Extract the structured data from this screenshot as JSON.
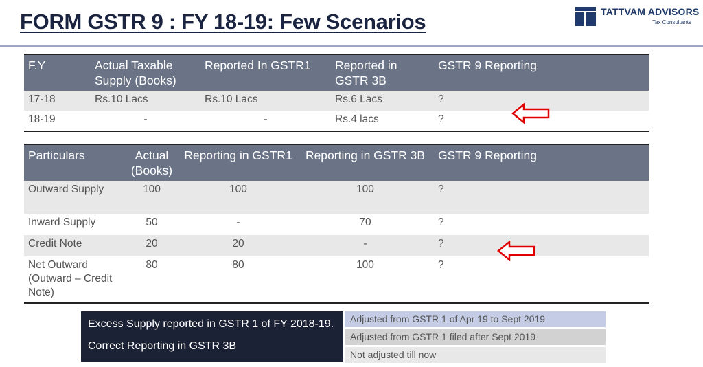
{
  "slide": {
    "title": "FORM GSTR 9 : FY 18-19: Few Scenarios",
    "brand": {
      "name": "TATTVAM ADVISORS",
      "tagline": "Tax Consultants",
      "color": "#1f3a6b"
    }
  },
  "table1": {
    "headers": [
      "F.Y",
      "Actual Taxable Supply (Books)",
      "Reported In GSTR1",
      "Reported in GSTR 3B",
      "GSTR 9  Reporting"
    ],
    "rows": [
      [
        "17-18",
        "Rs.10 Lacs",
        "Rs.10 Lacs",
        "Rs.6 Lacs",
        "?"
      ],
      [
        "18-19",
        "-",
        "-",
        "Rs.4 lacs",
        "?"
      ]
    ],
    "pointer_icon": "left-arrow-icon"
  },
  "table2": {
    "headers": [
      "Particulars",
      "Actual (Books)",
      "Reporting in GSTR1",
      "Reporting in GSTR 3B",
      "GSTR 9  Reporting"
    ],
    "rows": [
      [
        "Outward Supply",
        "100",
        "100",
        "100",
        "?"
      ],
      [
        "Inward Supply",
        "50",
        "-",
        "70",
        "?"
      ],
      [
        "Credit Note",
        "20",
        "20",
        "-",
        "?"
      ],
      [
        "Net Outward (Outward – Credit Note)",
        "80",
        "80",
        "100",
        "?"
      ]
    ],
    "pointer_icon": "left-arrow-icon"
  },
  "notes": {
    "line1": "Excess Supply reported in GSTR 1 of FY 2018-19.",
    "line2": "Correct Reporting in GSTR 3B"
  },
  "legend": [
    {
      "text": "Adjusted from GSTR 1 of Apr 19 to Sept 2019",
      "color": "#c5cde6"
    },
    {
      "text": "Adjusted from GSTR 1 filed after Sept 2019",
      "color": "#d2d2d2"
    },
    {
      "text": "Not adjusted till now",
      "color": "#e8e8e8"
    }
  ],
  "colors": {
    "header_bg": "#6b7487",
    "alt_row": "#e8e8e8",
    "arrow": "#e00000",
    "note_bg": "#1c2236"
  }
}
